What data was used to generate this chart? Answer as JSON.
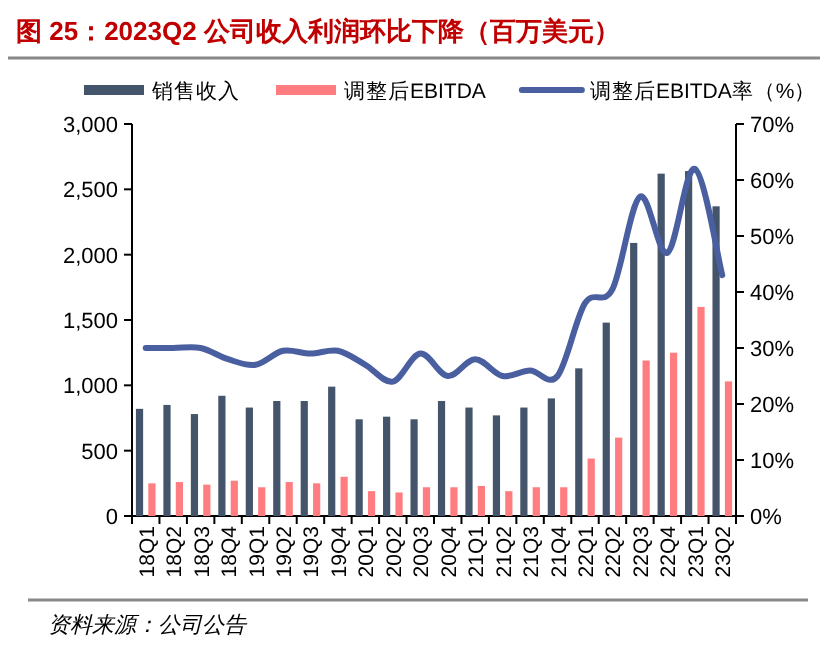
{
  "chart_data": {
    "type": "bar",
    "title": "图 25：2023Q2 公司收入利润环比下降（百万美元）",
    "categories": [
      "18Q1",
      "18Q2",
      "18Q3",
      "18Q4",
      "19Q1",
      "19Q2",
      "19Q3",
      "19Q4",
      "20Q1",
      "20Q2",
      "20Q3",
      "20Q4",
      "21Q1",
      "21Q2",
      "21Q3",
      "21Q4",
      "22Q1",
      "22Q2",
      "22Q3",
      "22Q4",
      "23Q1",
      "23Q2"
    ],
    "series": [
      {
        "name": "销售收入",
        "color": "#44546a",
        "values": [
          820,
          850,
          780,
          920,
          830,
          880,
          880,
          990,
          740,
          760,
          740,
          880,
          830,
          770,
          830,
          900,
          1130,
          1480,
          2090,
          2620,
          2640,
          2370
        ]
      },
      {
        "name": "调整后EBITDA",
        "color": "#ff7c80",
        "values": [
          250,
          260,
          240,
          270,
          220,
          260,
          250,
          300,
          190,
          180,
          220,
          220,
          230,
          190,
          220,
          220,
          440,
          600,
          1190,
          1250,
          1600,
          1030
        ]
      },
      {
        "name": "调整后EBITDA率（%）",
        "type": "line",
        "axis": "y2",
        "color": "#4a5fa0",
        "values": [
          30,
          30,
          30,
          28,
          27,
          29.5,
          29,
          29.5,
          27,
          24,
          29,
          25,
          28,
          25,
          26,
          25,
          38,
          40.5,
          57,
          47,
          62,
          43
        ]
      }
    ],
    "ylim": [
      0,
      3000
    ],
    "yticks": [
      {
        "value": 0,
        "label": "0"
      },
      {
        "value": 500,
        "label": "500"
      },
      {
        "value": 1000,
        "label": "1,000"
      },
      {
        "value": 1500,
        "label": "1,500"
      },
      {
        "value": 2000,
        "label": "2,000"
      },
      {
        "value": 2500,
        "label": "2,500"
      },
      {
        "value": 3000,
        "label": "3,000"
      }
    ],
    "y2lim": [
      0,
      70
    ],
    "y2ticks": [
      {
        "value": 0,
        "label": "0%"
      },
      {
        "value": 10,
        "label": "10%"
      },
      {
        "value": 20,
        "label": "20%"
      },
      {
        "value": 30,
        "label": "30%"
      },
      {
        "value": 40,
        "label": "40%"
      },
      {
        "value": 50,
        "label": "50%"
      },
      {
        "value": 60,
        "label": "60%"
      },
      {
        "value": 70,
        "label": "70%"
      }
    ],
    "legend": "top",
    "grid": false,
    "annotations": [
      "资料来源：公司公告"
    ]
  }
}
